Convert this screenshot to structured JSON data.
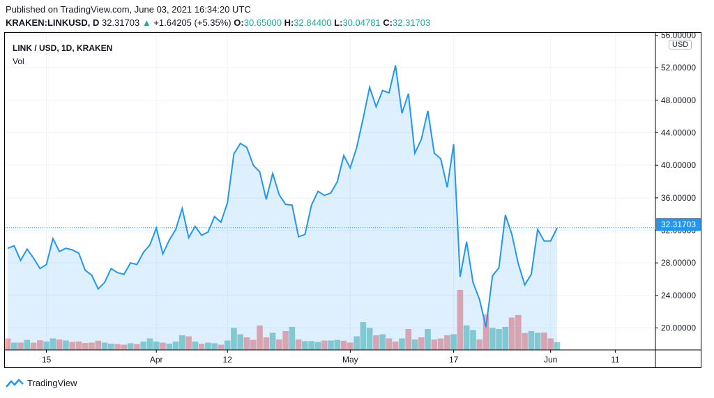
{
  "header": {
    "published": "Published on TradingView.com, June 03, 2021 16:34:20 UTC",
    "symbol": "KRAKEN:LINKUSD, D",
    "price": "32.31703",
    "change_arrow": "▲",
    "change": "+1.64205 (+5.35%)",
    "o_label": "O:",
    "o_value": "30.65000",
    "h_label": "H:",
    "h_value": "32.84400",
    "l_label": "L:",
    "l_value": "30.04781",
    "c_label": "C:",
    "c_value": "32.31703"
  },
  "legend": {
    "title": "LINK / USD, 1D, KRAKEN",
    "volume_label": "Vol"
  },
  "currency": "USD",
  "last_price_label": "32.31703",
  "footer": {
    "brand": "TradingView"
  },
  "colors": {
    "line": "#2196f3",
    "up": "#26a69a",
    "down": "#ef5350",
    "area": "#2196f3"
  },
  "chart_data": {
    "type": "area",
    "y_ticks": [
      "20.00000",
      "24.00000",
      "28.00000",
      "32.00000",
      "36.00000",
      "40.00000",
      "44.00000",
      "48.00000",
      "52.00000",
      "56.00000"
    ],
    "ylim": [
      17.3,
      56.3
    ],
    "x_tick_labels": [
      "15",
      "Apr",
      "12",
      "May",
      "17",
      "Jun",
      "11"
    ],
    "x_tick_dates": [
      "2021-03-15",
      "2021-04-01",
      "2021-04-12",
      "2021-05-01",
      "2021-05-17",
      "2021-06-01",
      "2021-06-11"
    ],
    "x_range": [
      "2021-03-09",
      "2021-06-17"
    ],
    "grid": true,
    "price": [
      {
        "x": "2021-03-09",
        "y": 29.8
      },
      {
        "x": "2021-03-10",
        "y": 30.1
      },
      {
        "x": "2021-03-11",
        "y": 28.3
      },
      {
        "x": "2021-03-12",
        "y": 29.7
      },
      {
        "x": "2021-03-13",
        "y": 28.6
      },
      {
        "x": "2021-03-14",
        "y": 27.3
      },
      {
        "x": "2021-03-15",
        "y": 27.8
      },
      {
        "x": "2021-03-16",
        "y": 31.0
      },
      {
        "x": "2021-03-17",
        "y": 29.4
      },
      {
        "x": "2021-03-18",
        "y": 29.8
      },
      {
        "x": "2021-03-19",
        "y": 29.6
      },
      {
        "x": "2021-03-20",
        "y": 29.2
      },
      {
        "x": "2021-03-21",
        "y": 27.1
      },
      {
        "x": "2021-03-22",
        "y": 26.5
      },
      {
        "x": "2021-03-23",
        "y": 24.8
      },
      {
        "x": "2021-03-24",
        "y": 25.6
      },
      {
        "x": "2021-03-25",
        "y": 27.3
      },
      {
        "x": "2021-03-26",
        "y": 26.8
      },
      {
        "x": "2021-03-27",
        "y": 26.6
      },
      {
        "x": "2021-03-28",
        "y": 28.0
      },
      {
        "x": "2021-03-29",
        "y": 27.8
      },
      {
        "x": "2021-03-30",
        "y": 29.3
      },
      {
        "x": "2021-03-31",
        "y": 30.2
      },
      {
        "x": "2021-04-01",
        "y": 32.3
      },
      {
        "x": "2021-04-02",
        "y": 29.1
      },
      {
        "x": "2021-04-03",
        "y": 30.8
      },
      {
        "x": "2021-04-04",
        "y": 32.1
      },
      {
        "x": "2021-04-05",
        "y": 34.7
      },
      {
        "x": "2021-04-06",
        "y": 31.1
      },
      {
        "x": "2021-04-07",
        "y": 32.5
      },
      {
        "x": "2021-04-08",
        "y": 31.4
      },
      {
        "x": "2021-04-09",
        "y": 31.8
      },
      {
        "x": "2021-04-10",
        "y": 33.7
      },
      {
        "x": "2021-04-11",
        "y": 33.0
      },
      {
        "x": "2021-04-12",
        "y": 35.4
      },
      {
        "x": "2021-04-13",
        "y": 41.4
      },
      {
        "x": "2021-04-14",
        "y": 42.7
      },
      {
        "x": "2021-04-15",
        "y": 42.2
      },
      {
        "x": "2021-04-16",
        "y": 40.0
      },
      {
        "x": "2021-04-17",
        "y": 39.2
      },
      {
        "x": "2021-04-18",
        "y": 35.8
      },
      {
        "x": "2021-04-19",
        "y": 39.0
      },
      {
        "x": "2021-04-20",
        "y": 36.4
      },
      {
        "x": "2021-04-21",
        "y": 35.2
      },
      {
        "x": "2021-04-22",
        "y": 35.1
      },
      {
        "x": "2021-04-23",
        "y": 31.2
      },
      {
        "x": "2021-04-24",
        "y": 31.5
      },
      {
        "x": "2021-04-25",
        "y": 35.1
      },
      {
        "x": "2021-04-26",
        "y": 36.8
      },
      {
        "x": "2021-04-27",
        "y": 36.3
      },
      {
        "x": "2021-04-28",
        "y": 36.6
      },
      {
        "x": "2021-04-29",
        "y": 38.0
      },
      {
        "x": "2021-04-30",
        "y": 41.2
      },
      {
        "x": "2021-05-01",
        "y": 39.7
      },
      {
        "x": "2021-05-02",
        "y": 42.2
      },
      {
        "x": "2021-05-03",
        "y": 45.8
      },
      {
        "x": "2021-05-04",
        "y": 49.6
      },
      {
        "x": "2021-05-05",
        "y": 47.2
      },
      {
        "x": "2021-05-06",
        "y": 49.2
      },
      {
        "x": "2021-05-07",
        "y": 48.9
      },
      {
        "x": "2021-05-08",
        "y": 52.3
      },
      {
        "x": "2021-05-09",
        "y": 46.4
      },
      {
        "x": "2021-05-10",
        "y": 48.8
      },
      {
        "x": "2021-05-11",
        "y": 41.5
      },
      {
        "x": "2021-05-12",
        "y": 43.2
      },
      {
        "x": "2021-05-13",
        "y": 46.7
      },
      {
        "x": "2021-05-14",
        "y": 41.5
      },
      {
        "x": "2021-05-15",
        "y": 40.8
      },
      {
        "x": "2021-05-16",
        "y": 37.3
      },
      {
        "x": "2021-05-17",
        "y": 42.6
      },
      {
        "x": "2021-05-18",
        "y": 26.3
      },
      {
        "x": "2021-05-19",
        "y": 30.6
      },
      {
        "x": "2021-05-20",
        "y": 25.6
      },
      {
        "x": "2021-05-21",
        "y": 23.5
      },
      {
        "x": "2021-05-22",
        "y": 20.1
      },
      {
        "x": "2021-05-23",
        "y": 26.4
      },
      {
        "x": "2021-05-24",
        "y": 27.4
      },
      {
        "x": "2021-05-25",
        "y": 33.9
      },
      {
        "x": "2021-05-26",
        "y": 31.5
      },
      {
        "x": "2021-05-27",
        "y": 27.9
      },
      {
        "x": "2021-05-28",
        "y": 25.3
      },
      {
        "x": "2021-05-29",
        "y": 26.6
      },
      {
        "x": "2021-05-30",
        "y": 32.1
      },
      {
        "x": "2021-05-31",
        "y": 30.7
      },
      {
        "x": "2021-06-01",
        "y": 30.7
      },
      {
        "x": "2021-06-02",
        "y": 32.3
      }
    ],
    "volume": [
      {
        "x": "2021-03-09",
        "v": 0.55,
        "up": false
      },
      {
        "x": "2021-03-10",
        "v": 0.35,
        "up": true
      },
      {
        "x": "2021-03-11",
        "v": 0.35,
        "up": false
      },
      {
        "x": "2021-03-12",
        "v": 0.48,
        "up": true
      },
      {
        "x": "2021-03-13",
        "v": 0.35,
        "up": false
      },
      {
        "x": "2021-03-14",
        "v": 0.46,
        "up": false
      },
      {
        "x": "2021-03-15",
        "v": 0.4,
        "up": true
      },
      {
        "x": "2021-03-16",
        "v": 0.55,
        "up": true
      },
      {
        "x": "2021-03-17",
        "v": 0.5,
        "up": false
      },
      {
        "x": "2021-03-18",
        "v": 0.45,
        "up": true
      },
      {
        "x": "2021-03-19",
        "v": 0.38,
        "up": false
      },
      {
        "x": "2021-03-20",
        "v": 0.4,
        "up": false
      },
      {
        "x": "2021-03-21",
        "v": 0.33,
        "up": false
      },
      {
        "x": "2021-03-22",
        "v": 0.35,
        "up": false
      },
      {
        "x": "2021-03-23",
        "v": 0.44,
        "up": false
      },
      {
        "x": "2021-03-24",
        "v": 0.35,
        "up": true
      },
      {
        "x": "2021-03-25",
        "v": 0.3,
        "up": true
      },
      {
        "x": "2021-03-26",
        "v": 0.28,
        "up": false
      },
      {
        "x": "2021-03-27",
        "v": 0.25,
        "up": false
      },
      {
        "x": "2021-03-28",
        "v": 0.32,
        "up": true
      },
      {
        "x": "2021-03-29",
        "v": 0.28,
        "up": false
      },
      {
        "x": "2021-03-30",
        "v": 0.4,
        "up": true
      },
      {
        "x": "2021-03-31",
        "v": 0.55,
        "up": true
      },
      {
        "x": "2021-04-01",
        "v": 0.4,
        "up": true
      },
      {
        "x": "2021-04-02",
        "v": 0.35,
        "up": false
      },
      {
        "x": "2021-04-03",
        "v": 0.3,
        "up": true
      },
      {
        "x": "2021-04-04",
        "v": 0.4,
        "up": true
      },
      {
        "x": "2021-04-05",
        "v": 0.7,
        "up": true
      },
      {
        "x": "2021-04-06",
        "v": 0.65,
        "up": false
      },
      {
        "x": "2021-04-07",
        "v": 0.4,
        "up": true
      },
      {
        "x": "2021-04-08",
        "v": 0.3,
        "up": false
      },
      {
        "x": "2021-04-09",
        "v": 0.35,
        "up": true
      },
      {
        "x": "2021-04-10",
        "v": 0.32,
        "up": true
      },
      {
        "x": "2021-04-11",
        "v": 0.25,
        "up": false
      },
      {
        "x": "2021-04-12",
        "v": 0.45,
        "up": true
      },
      {
        "x": "2021-04-13",
        "v": 1.05,
        "up": true
      },
      {
        "x": "2021-04-14",
        "v": 0.75,
        "up": true
      },
      {
        "x": "2021-04-15",
        "v": 0.6,
        "up": false
      },
      {
        "x": "2021-04-16",
        "v": 0.48,
        "up": false
      },
      {
        "x": "2021-04-17",
        "v": 1.17,
        "up": false
      },
      {
        "x": "2021-04-18",
        "v": 0.6,
        "up": false
      },
      {
        "x": "2021-04-19",
        "v": 0.82,
        "up": true
      },
      {
        "x": "2021-04-20",
        "v": 0.5,
        "up": false
      },
      {
        "x": "2021-04-21",
        "v": 0.9,
        "up": false
      },
      {
        "x": "2021-04-22",
        "v": 1.1,
        "up": true
      },
      {
        "x": "2021-04-23",
        "v": 0.5,
        "up": false
      },
      {
        "x": "2021-04-24",
        "v": 0.42,
        "up": true
      },
      {
        "x": "2021-04-25",
        "v": 0.42,
        "up": true
      },
      {
        "x": "2021-04-26",
        "v": 0.38,
        "up": true
      },
      {
        "x": "2021-04-27",
        "v": 0.45,
        "up": false
      },
      {
        "x": "2021-04-28",
        "v": 0.45,
        "up": true
      },
      {
        "x": "2021-04-29",
        "v": 0.48,
        "up": true
      },
      {
        "x": "2021-04-30",
        "v": 0.44,
        "up": false
      },
      {
        "x": "2021-05-01",
        "v": 0.35,
        "up": false
      },
      {
        "x": "2021-05-02",
        "v": 0.65,
        "up": true
      },
      {
        "x": "2021-05-03",
        "v": 1.33,
        "up": true
      },
      {
        "x": "2021-05-04",
        "v": 1.05,
        "up": true
      },
      {
        "x": "2021-05-05",
        "v": 0.7,
        "up": false
      },
      {
        "x": "2021-05-06",
        "v": 0.75,
        "up": true
      },
      {
        "x": "2021-05-07",
        "v": 0.55,
        "up": false
      },
      {
        "x": "2021-05-08",
        "v": 0.4,
        "up": false
      },
      {
        "x": "2021-05-09",
        "v": 0.55,
        "up": true
      },
      {
        "x": "2021-05-10",
        "v": 1.0,
        "up": false
      },
      {
        "x": "2021-05-11",
        "v": 0.5,
        "up": true
      },
      {
        "x": "2021-05-12",
        "v": 0.6,
        "up": false
      },
      {
        "x": "2021-05-13",
        "v": 1.0,
        "up": true
      },
      {
        "x": "2021-05-14",
        "v": 0.5,
        "up": false
      },
      {
        "x": "2021-05-15",
        "v": 0.55,
        "up": false
      },
      {
        "x": "2021-05-16",
        "v": 0.7,
        "up": false
      },
      {
        "x": "2021-05-17",
        "v": 0.75,
        "up": true
      },
      {
        "x": "2021-05-18",
        "v": 2.87,
        "up": false
      },
      {
        "x": "2021-05-19",
        "v": 1.17,
        "up": true
      },
      {
        "x": "2021-05-20",
        "v": 0.95,
        "up": true
      },
      {
        "x": "2021-05-21",
        "v": 0.5,
        "up": false
      },
      {
        "x": "2021-05-22",
        "v": 1.7,
        "up": false
      },
      {
        "x": "2021-05-23",
        "v": 1.05,
        "up": true
      },
      {
        "x": "2021-05-24",
        "v": 1.0,
        "up": true
      },
      {
        "x": "2021-05-25",
        "v": 1.1,
        "up": true
      },
      {
        "x": "2021-05-26",
        "v": 1.55,
        "up": false
      },
      {
        "x": "2021-05-27",
        "v": 1.67,
        "up": false
      },
      {
        "x": "2021-05-28",
        "v": 0.81,
        "up": false
      },
      {
        "x": "2021-05-29",
        "v": 0.9,
        "up": true
      },
      {
        "x": "2021-05-30",
        "v": 0.82,
        "up": true
      },
      {
        "x": "2021-05-31",
        "v": 0.83,
        "up": false
      },
      {
        "x": "2021-06-01",
        "v": 0.55,
        "up": false
      },
      {
        "x": "2021-06-02",
        "v": 0.37,
        "up": true
      }
    ]
  }
}
